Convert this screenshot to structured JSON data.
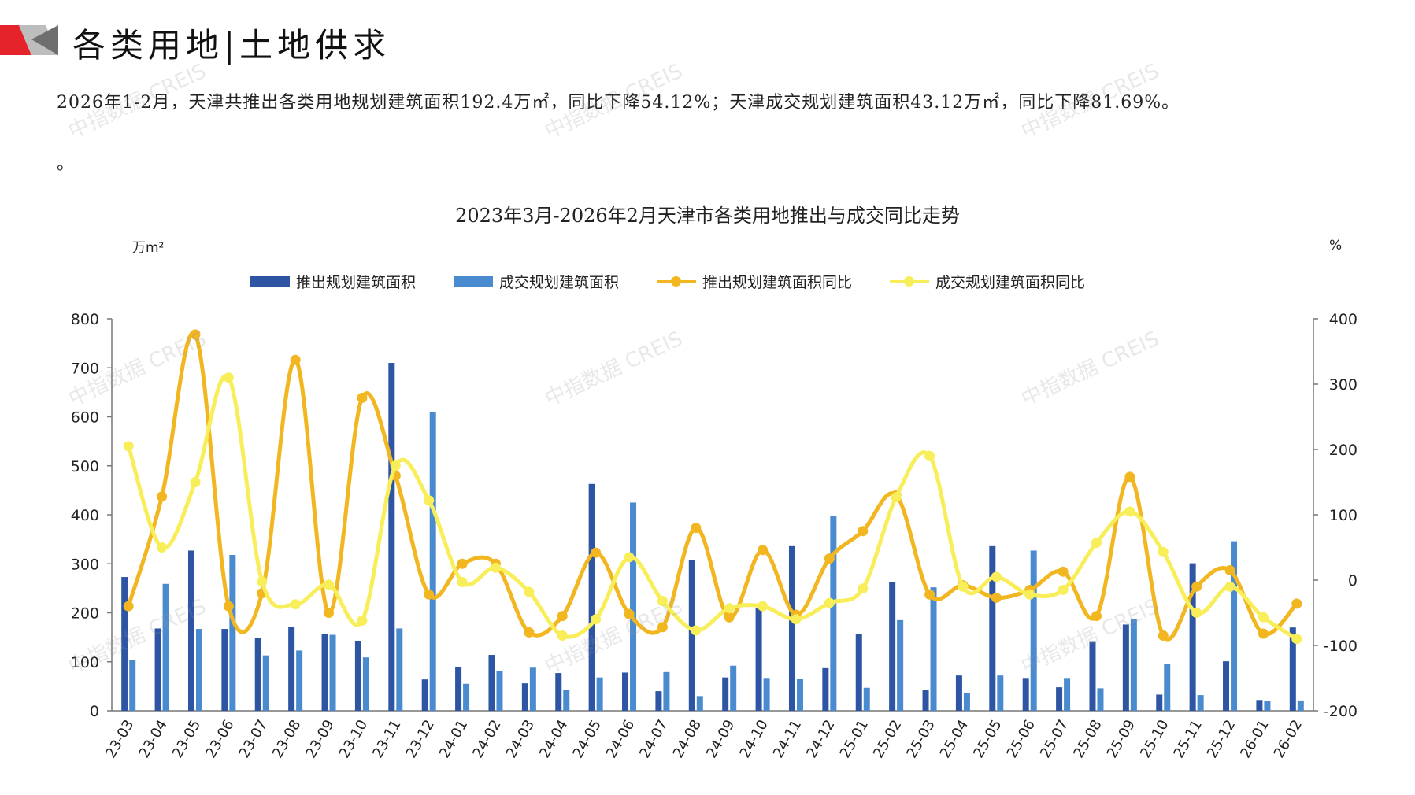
{
  "header": {
    "title": "各类用地|土地供求"
  },
  "summary": {
    "text": "2026年1-2月，天津共推出各类用地规划建筑面积192.4万㎡，同比下降54.12%；天津成交规划建筑面积43.12万㎡，同比下降81.69%。",
    "tail": "。"
  },
  "watermark": {
    "text": "中指数据 CREIS"
  },
  "colors": {
    "launch_bar": "#2E54A4",
    "deal_bar": "#4A8BD0",
    "launch_line": "#F2B620",
    "deal_line": "#F8EE5A"
  },
  "chart_data": {
    "type": "bar",
    "title": "2023年3月-2026年2月天津市各类用地推出与成交同比走势",
    "y_unit_left": "万m²",
    "y_unit_right": "%",
    "ylim_left": [
      0,
      800
    ],
    "ylim_right": [
      -200,
      400
    ],
    "yticks_left": [
      "0",
      "100",
      "200",
      "300",
      "400",
      "500",
      "600",
      "700",
      "800"
    ],
    "yticks_right": [
      "-200",
      "-100",
      "0",
      "100",
      "200",
      "300",
      "400"
    ],
    "legend_position": "top",
    "grid": false,
    "categories": [
      "23-03",
      "23-04",
      "23-05",
      "23-06",
      "23-07",
      "23-08",
      "23-09",
      "23-10",
      "23-11",
      "23-12",
      "24-01",
      "24-02",
      "24-03",
      "24-04",
      "24-05",
      "24-06",
      "24-07",
      "24-08",
      "24-09",
      "24-10",
      "24-11",
      "24-12",
      "25-01",
      "25-02",
      "25-03",
      "25-04",
      "25-05",
      "25-06",
      "25-07",
      "25-08",
      "25-09",
      "25-10",
      "25-11",
      "25-12",
      "26-01",
      "26-02"
    ],
    "series": [
      {
        "name": "推出规划建筑面积",
        "type": "bar",
        "axis": "left",
        "values": [
          273,
          168,
          327,
          167,
          148,
          171,
          156,
          143,
          710,
          64,
          89,
          114,
          56,
          77,
          463,
          78,
          40,
          307,
          68,
          210,
          336,
          87,
          156,
          263,
          43,
          72,
          336,
          67,
          48,
          142,
          176,
          33,
          301,
          101,
          22,
          170
        ]
      },
      {
        "name": "成交规划建筑面积",
        "type": "bar",
        "axis": "left",
        "values": [
          103,
          259,
          167,
          318,
          113,
          123,
          155,
          109,
          168,
          610,
          55,
          82,
          88,
          43,
          68,
          425,
          79,
          30,
          92,
          67,
          65,
          397,
          47,
          185,
          252,
          37,
          72,
          327,
          67,
          46,
          188,
          96,
          32,
          346,
          20,
          21
        ]
      },
      {
        "name": "推出规划建筑面积同比",
        "type": "line",
        "axis": "right",
        "values": [
          -40,
          128,
          376,
          -40,
          -20,
          337,
          -50,
          279,
          160,
          -22,
          25,
          25,
          -80,
          -55,
          42,
          -52,
          -72,
          80,
          -57,
          46,
          -53,
          33,
          75,
          130,
          -22,
          -8,
          -27,
          -15,
          13,
          -55,
          158,
          -85,
          -10,
          15,
          -82,
          -36
        ]
      },
      {
        "name": "成交规划建筑面积同比",
        "type": "line",
        "axis": "right",
        "values": [
          205,
          50,
          150,
          310,
          -2,
          -37,
          -7,
          -62,
          175,
          122,
          -3,
          19,
          -18,
          -85,
          -60,
          35,
          -32,
          -77,
          -43,
          -40,
          -60,
          -35,
          -13,
          127,
          190,
          -10,
          5,
          -22,
          -15,
          57,
          105,
          43,
          -50,
          -10,
          -57,
          -90
        ]
      }
    ]
  }
}
